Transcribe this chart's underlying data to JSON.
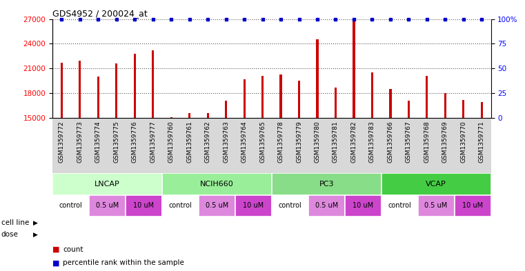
{
  "title": "GDS4952 / 200024_at",
  "samples": [
    "GSM1359772",
    "GSM1359773",
    "GSM1359774",
    "GSM1359775",
    "GSM1359776",
    "GSM1359777",
    "GSM1359760",
    "GSM1359761",
    "GSM1359762",
    "GSM1359763",
    "GSM1359764",
    "GSM1359765",
    "GSM1359778",
    "GSM1359779",
    "GSM1359780",
    "GSM1359781",
    "GSM1359782",
    "GSM1359783",
    "GSM1359766",
    "GSM1359767",
    "GSM1359768",
    "GSM1359769",
    "GSM1359770",
    "GSM1359771"
  ],
  "counts": [
    21700,
    21900,
    20000,
    21600,
    22800,
    23200,
    15100,
    15600,
    15600,
    17100,
    19700,
    20100,
    20300,
    19500,
    24500,
    18700,
    26800,
    20500,
    18500,
    17100,
    20100,
    18000,
    17200,
    16900
  ],
  "ylim_left": [
    15000,
    27000
  ],
  "yticks_left": [
    15000,
    18000,
    21000,
    24000,
    27000
  ],
  "ylim_right": [
    0,
    100
  ],
  "yticks_right": [
    0,
    25,
    50,
    75,
    100
  ],
  "bar_color": "#cc0000",
  "dot_color": "#0000cc",
  "cell_lines": [
    {
      "name": "LNCAP",
      "start": 0,
      "end": 6,
      "color": "#ccffcc"
    },
    {
      "name": "NCIH660",
      "start": 6,
      "end": 12,
      "color": "#99ee99"
    },
    {
      "name": "PC3",
      "start": 12,
      "end": 18,
      "color": "#88dd88"
    },
    {
      "name": "VCAP",
      "start": 18,
      "end": 24,
      "color": "#44cc44"
    }
  ],
  "doses": [
    {
      "label": "control",
      "start": 0,
      "end": 2,
      "color": "#ffffff"
    },
    {
      "label": "0.5 uM",
      "start": 2,
      "end": 4,
      "color": "#dd88dd"
    },
    {
      "label": "10 uM",
      "start": 4,
      "end": 6,
      "color": "#cc44cc"
    },
    {
      "label": "control",
      "start": 6,
      "end": 8,
      "color": "#ffffff"
    },
    {
      "label": "0.5 uM",
      "start": 8,
      "end": 10,
      "color": "#dd88dd"
    },
    {
      "label": "10 uM",
      "start": 10,
      "end": 12,
      "color": "#cc44cc"
    },
    {
      "label": "control",
      "start": 12,
      "end": 14,
      "color": "#ffffff"
    },
    {
      "label": "0.5 uM",
      "start": 14,
      "end": 16,
      "color": "#dd88dd"
    },
    {
      "label": "10 uM",
      "start": 16,
      "end": 18,
      "color": "#cc44cc"
    },
    {
      "label": "control",
      "start": 18,
      "end": 20,
      "color": "#ffffff"
    },
    {
      "label": "0.5 uM",
      "start": 20,
      "end": 22,
      "color": "#dd88dd"
    },
    {
      "label": "10 uM",
      "start": 22,
      "end": 24,
      "color": "#cc44cc"
    }
  ],
  "grid_color": "#555555",
  "bg_color": "#ffffff",
  "bar_width": 0.12,
  "label_fontsize": 6.5,
  "tick_fontsize": 7.5,
  "annotation_fontsize": 8
}
